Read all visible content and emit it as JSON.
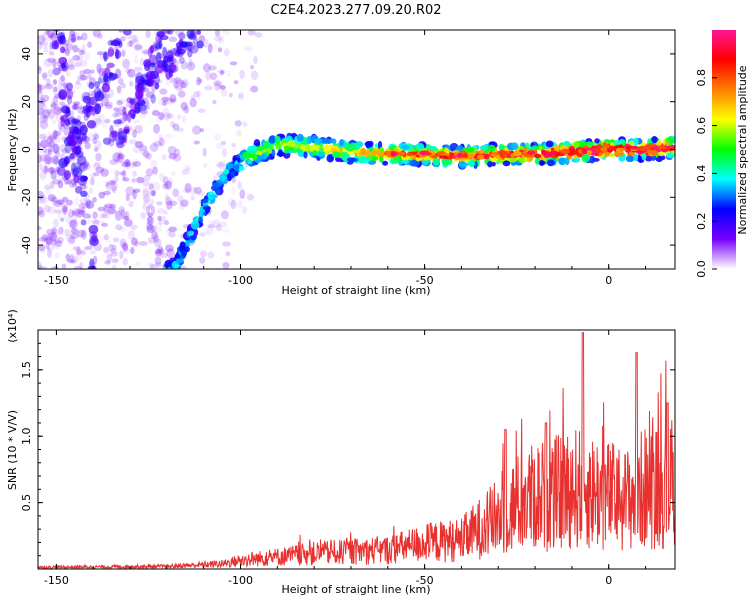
{
  "title": "C2E4.2023.277.09.20.R02",
  "chart_data": [
    {
      "type": "heatmap",
      "xlabel": "Height of straight line (km)",
      "ylabel": "Frequency (Hz)",
      "xlim": [
        -155,
        18
      ],
      "ylim": [
        -50,
        50
      ],
      "xticks": [
        -150,
        -100,
        -50,
        0
      ],
      "yticks": [
        -40,
        -20,
        0,
        20,
        40
      ],
      "colorbar": {
        "label": "Normalized spectral amplitude",
        "range": [
          0,
          1
        ],
        "ticks": [
          "0.0",
          "0.2",
          "0.4",
          "0.6",
          "0.8"
        ],
        "colors": [
          "#ffffff",
          "#7700ff",
          "#0000ff",
          "#00ffff",
          "#00ff00",
          "#ffff00",
          "#ff7f00",
          "#ff0000",
          "#ff1493"
        ]
      },
      "ridge": [
        {
          "x": -118,
          "y": -50
        },
        {
          "x": -110,
          "y": -25
        },
        {
          "x": -104,
          "y": -10
        },
        {
          "x": -98,
          "y": -3
        },
        {
          "x": -90,
          "y": 2
        },
        {
          "x": -80,
          "y": 1
        },
        {
          "x": -70,
          "y": -1
        },
        {
          "x": -60,
          "y": -2
        },
        {
          "x": -50,
          "y": -2
        },
        {
          "x": -40,
          "y": -3
        },
        {
          "x": -30,
          "y": -2
        },
        {
          "x": -20,
          "y": -2
        },
        {
          "x": -10,
          "y": -1
        },
        {
          "x": 0,
          "y": 0
        },
        {
          "x": 10,
          "y": 0
        },
        {
          "x": 18,
          "y": 1
        }
      ]
    },
    {
      "type": "line",
      "xlabel": "Height of straight line (km)",
      "ylabel": "SNR (10 * V/V)",
      "y_multiplier": "(x10⁴)",
      "xlim": [
        -155,
        18
      ],
      "ylim": [
        0,
        1.8
      ],
      "xticks": [
        -150,
        -100,
        -50,
        0
      ],
      "yticks": [
        0.5,
        1.0,
        1.5
      ],
      "ytick_labels": [
        "0.5",
        "1.0",
        "1.5"
      ],
      "color": "#e8312f",
      "envelope": [
        {
          "x": -155,
          "y": 0.02
        },
        {
          "x": -120,
          "y": 0.03
        },
        {
          "x": -105,
          "y": 0.06
        },
        {
          "x": -100,
          "y": 0.1
        },
        {
          "x": -90,
          "y": 0.14
        },
        {
          "x": -80,
          "y": 0.18
        },
        {
          "x": -70,
          "y": 0.2
        },
        {
          "x": -60,
          "y": 0.22
        },
        {
          "x": -50,
          "y": 0.3
        },
        {
          "x": -40,
          "y": 0.34
        },
        {
          "x": -30,
          "y": 0.6
        },
        {
          "x": -25,
          "y": 0.75
        },
        {
          "x": -20,
          "y": 0.85
        },
        {
          "x": -15,
          "y": 0.85
        },
        {
          "x": -10,
          "y": 0.95
        },
        {
          "x": -5,
          "y": 0.9
        },
        {
          "x": 0,
          "y": 0.85
        },
        {
          "x": 5,
          "y": 0.8
        },
        {
          "x": 10,
          "y": 0.95
        },
        {
          "x": 18,
          "y": 0.95
        }
      ],
      "peaks": [
        {
          "x": -7,
          "y": 1.78
        },
        {
          "x": 7.5,
          "y": 1.63
        },
        {
          "x": 16,
          "y": 1.25
        },
        {
          "x": -17,
          "y": 1.1
        },
        {
          "x": -28,
          "y": 1.05
        }
      ]
    }
  ]
}
